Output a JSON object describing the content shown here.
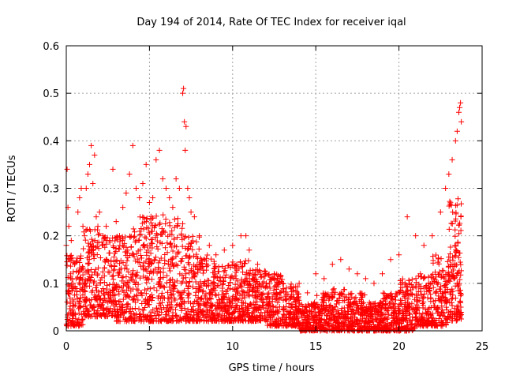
{
  "chart_data": {
    "type": "scatter",
    "title": "Day 194 of 2014, Rate Of TEC Index for receiver iqal",
    "xlabel": "GPS time / hours",
    "ylabel": "ROTI / TECUs",
    "xlim": [
      0,
      25
    ],
    "ylim": [
      0,
      0.6
    ],
    "xticks": [
      0,
      5,
      10,
      15,
      20,
      25
    ],
    "yticks": [
      0,
      0.1,
      0.2,
      0.3,
      0.4,
      0.5,
      0.6
    ],
    "ytick_labels": [
      "0",
      "0.1",
      "0.2",
      "0.3",
      "0.4",
      "0.5",
      "0.6"
    ],
    "grid": true,
    "marker": "+",
    "series": [
      {
        "name": "ROTI",
        "color": "#ff0000",
        "x": [
          0.0,
          0.05,
          0.1,
          0.15,
          0.2,
          0.25,
          0.3,
          0.4,
          0.5,
          0.6,
          0.7,
          0.8,
          0.9,
          1.0,
          1.1,
          1.2,
          1.3,
          1.4,
          1.5,
          1.6,
          1.7,
          1.8,
          1.9,
          2.0,
          2.2,
          2.4,
          2.6,
          2.8,
          3.0,
          3.2,
          3.4,
          3.6,
          3.8,
          4.0,
          4.2,
          4.4,
          4.6,
          4.8,
          5.0,
          5.2,
          5.4,
          5.6,
          5.8,
          6.0,
          6.2,
          6.4,
          6.6,
          6.8,
          7.0,
          7.05,
          7.1,
          7.15,
          7.2,
          7.3,
          7.4,
          7.5,
          7.7,
          8.0,
          8.3,
          8.6,
          9.0,
          9.5,
          10.0,
          10.5,
          10.8,
          11.0,
          11.5,
          12.0,
          12.5,
          13.0,
          13.5,
          14.0,
          14.5,
          15.0,
          15.5,
          16.0,
          16.5,
          17.0,
          17.5,
          18.0,
          18.5,
          19.0,
          19.5,
          20.0,
          20.5,
          21.0,
          21.5,
          22.0,
          22.5,
          22.8,
          23.0,
          23.2,
          23.4,
          23.5,
          23.6,
          23.65,
          23.7,
          23.75
        ],
        "y": [
          0.18,
          0.34,
          0.26,
          0.22,
          0.15,
          0.12,
          0.19,
          0.1,
          0.14,
          0.11,
          0.25,
          0.28,
          0.3,
          0.22,
          0.2,
          0.3,
          0.33,
          0.35,
          0.39,
          0.31,
          0.37,
          0.24,
          0.22,
          0.25,
          0.2,
          0.22,
          0.19,
          0.34,
          0.23,
          0.2,
          0.26,
          0.29,
          0.33,
          0.39,
          0.3,
          0.28,
          0.31,
          0.35,
          0.27,
          0.28,
          0.36,
          0.38,
          0.32,
          0.3,
          0.28,
          0.26,
          0.32,
          0.3,
          0.5,
          0.51,
          0.44,
          0.38,
          0.43,
          0.3,
          0.28,
          0.25,
          0.24,
          0.2,
          0.15,
          0.18,
          0.16,
          0.17,
          0.18,
          0.2,
          0.2,
          0.17,
          0.14,
          0.12,
          0.12,
          0.1,
          0.09,
          0.1,
          0.08,
          0.12,
          0.11,
          0.14,
          0.15,
          0.13,
          0.12,
          0.11,
          0.1,
          0.12,
          0.15,
          0.16,
          0.24,
          0.2,
          0.18,
          0.2,
          0.25,
          0.3,
          0.33,
          0.36,
          0.4,
          0.42,
          0.46,
          0.47,
          0.48,
          0.44
        ],
        "bulk": [
          {
            "x": [
              0,
              1
            ],
            "y": [
              0.01,
              0.16
            ]
          },
          {
            "x": [
              1,
              2
            ],
            "y": [
              0.03,
              0.22
            ]
          },
          {
            "x": [
              2,
              3
            ],
            "y": [
              0.03,
              0.2
            ]
          },
          {
            "x": [
              3,
              4
            ],
            "y": [
              0.02,
              0.2
            ]
          },
          {
            "x": [
              4,
              5
            ],
            "y": [
              0.02,
              0.24
            ]
          },
          {
            "x": [
              5,
              6
            ],
            "y": [
              0.02,
              0.25
            ]
          },
          {
            "x": [
              6,
              7
            ],
            "y": [
              0.02,
              0.24
            ]
          },
          {
            "x": [
              7,
              8
            ],
            "y": [
              0.02,
              0.2
            ]
          },
          {
            "x": [
              8,
              9
            ],
            "y": [
              0.02,
              0.16
            ]
          },
          {
            "x": [
              9,
              10
            ],
            "y": [
              0.02,
              0.14
            ]
          },
          {
            "x": [
              10,
              11
            ],
            "y": [
              0.02,
              0.15
            ]
          },
          {
            "x": [
              11,
              12
            ],
            "y": [
              0.02,
              0.13
            ]
          },
          {
            "x": [
              12,
              13
            ],
            "y": [
              0.01,
              0.12
            ]
          },
          {
            "x": [
              13,
              14
            ],
            "y": [
              0.01,
              0.1
            ]
          },
          {
            "x": [
              14,
              15
            ],
            "y": [
              0.0,
              0.06
            ]
          },
          {
            "x": [
              15,
              16
            ],
            "y": [
              0.0,
              0.08
            ]
          },
          {
            "x": [
              16,
              17
            ],
            "y": [
              0.0,
              0.09
            ]
          },
          {
            "x": [
              17,
              18
            ],
            "y": [
              0.0,
              0.08
            ]
          },
          {
            "x": [
              18,
              19
            ],
            "y": [
              0.0,
              0.06
            ]
          },
          {
            "x": [
              19,
              20
            ],
            "y": [
              0.0,
              0.08
            ]
          },
          {
            "x": [
              20,
              21
            ],
            "y": [
              0.0,
              0.11
            ]
          },
          {
            "x": [
              21,
              22
            ],
            "y": [
              0.01,
              0.12
            ]
          },
          {
            "x": [
              22,
              23
            ],
            "y": [
              0.01,
              0.16
            ]
          },
          {
            "x": [
              23,
              23.75
            ],
            "y": [
              0.02,
              0.28
            ]
          }
        ]
      }
    ]
  }
}
